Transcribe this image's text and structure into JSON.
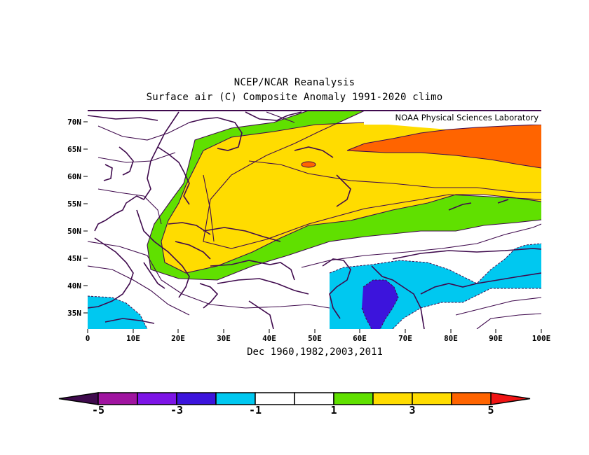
{
  "header": {
    "title": "NCEP/NCAR Reanalysis",
    "subtitle": "Surface air (C) Composite Anomaly 1991-2020 climo"
  },
  "credit": "NOAA Physical Sciences Laboratory",
  "footer": {
    "dates": "Dec 1960,1982,2003,2011"
  },
  "map": {
    "lon_range": [
      0,
      100
    ],
    "lat_range": [
      32,
      72
    ],
    "lat_ticks": [
      "35N",
      "40N",
      "45N",
      "50N",
      "55N",
      "60N",
      "65N",
      "70N"
    ],
    "lon_ticks": [
      "0",
      "10E",
      "20E",
      "30E",
      "40E",
      "50E",
      "60E",
      "70E",
      "80E",
      "90E",
      "100E"
    ]
  },
  "colorbar": {
    "labels": [
      "-5",
      "-3",
      "-1",
      "1",
      "3",
      "5"
    ],
    "colors": [
      "#3f0a4d",
      "#a014a0",
      "#7d14e6",
      "#3c14dc",
      "#00c8f0",
      "#ffffff",
      "#ffffff",
      "#60e000",
      "#ffdc00",
      "#ffdc00",
      "#ff6400",
      "#f01414"
    ]
  }
}
